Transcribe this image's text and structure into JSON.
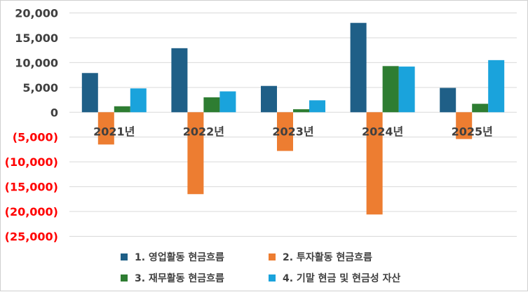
{
  "chart_data": {
    "type": "bar",
    "categories": [
      "2021년",
      "2022년",
      "2023년",
      "2024년",
      "2025년"
    ],
    "series": [
      {
        "name": "1. 영업활동 현금흐름",
        "color": "#1f5f87",
        "values": [
          7900,
          12900,
          5300,
          18000,
          4900
        ]
      },
      {
        "name": "2. 투자활동 현금흐름",
        "color": "#ed7d31",
        "values": [
          -6500,
          -16500,
          -7800,
          -20600,
          -5400
        ]
      },
      {
        "name": "3. 재무활동 현금흐름",
        "color": "#2e7d32",
        "values": [
          1200,
          3000,
          600,
          9300,
          1700
        ]
      },
      {
        "name": "4. 기말 현금 및 현금성 자산",
        "color": "#1aa3dc",
        "values": [
          4800,
          4200,
          2400,
          9200,
          10500
        ]
      }
    ],
    "ylim": [
      -25000,
      20000
    ],
    "yticks": [
      20000,
      15000,
      10000,
      5000,
      0,
      -5000,
      -10000,
      -15000,
      -20000,
      -25000
    ],
    "ytick_labels": [
      "20,000",
      "15,000",
      "10,000",
      "5,000",
      "0",
      "(5,000)",
      "(10,000)",
      "(15,000)",
      "(20,000)",
      "(25,000)"
    ],
    "positive_tick_color": "#404040",
    "negative_tick_color": "#ff0000",
    "grid": true,
    "legend_position": "bottom",
    "title": "",
    "xlabel": "",
    "ylabel": ""
  }
}
